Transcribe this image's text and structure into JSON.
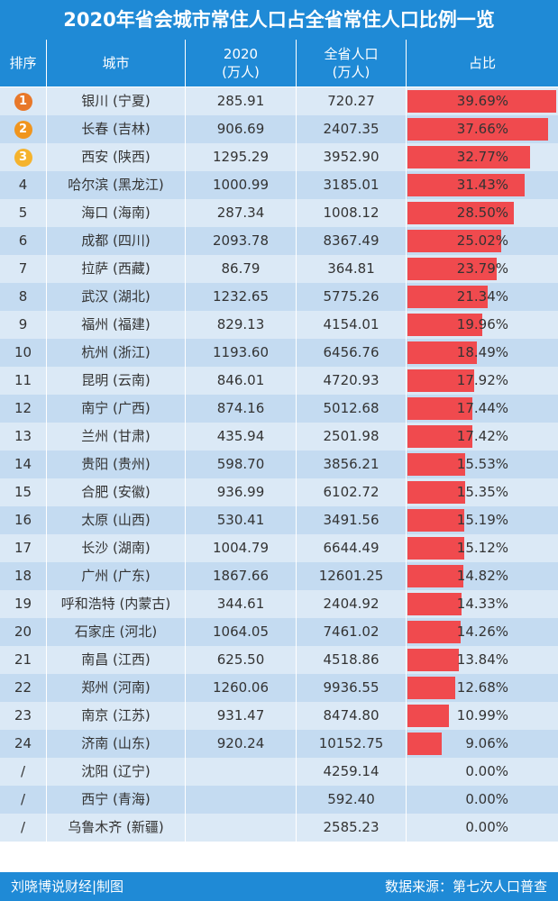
{
  "title": "2020年省会城市常住人口占全省常住人口比例一览",
  "headers": {
    "rank": "排序",
    "city": "城市",
    "pop2020_line1": "2020",
    "pop2020_line2": "(万人)",
    "province_line1": "全省人口",
    "province_line2": "(万人)",
    "share": "占比"
  },
  "colors": {
    "header": "#1f8ad6",
    "bar": "#f04a4e",
    "row_light": "#dbe9f6",
    "row_dark": "#c4dbf1"
  },
  "chart_data": {
    "type": "table",
    "title": "2020年省会城市常住人口占全省常住人口比例一览",
    "columns": [
      "排序",
      "城市",
      "2020 (万人)",
      "全省人口 (万人)",
      "占比"
    ],
    "rows": [
      {
        "rank": "1",
        "city": "银川 (宁夏)",
        "pop": "285.91",
        "province": "720.27",
        "share": "39.69%",
        "share_value": 39.69
      },
      {
        "rank": "2",
        "city": "长春 (吉林)",
        "pop": "906.69",
        "province": "2407.35",
        "share": "37.66%",
        "share_value": 37.66
      },
      {
        "rank": "3",
        "city": "西安 (陕西)",
        "pop": "1295.29",
        "province": "3952.90",
        "share": "32.77%",
        "share_value": 32.77
      },
      {
        "rank": "4",
        "city": "哈尔滨 (黑龙江)",
        "pop": "1000.99",
        "province": "3185.01",
        "share": "31.43%",
        "share_value": 31.43
      },
      {
        "rank": "5",
        "city": "海口 (海南)",
        "pop": "287.34",
        "province": "1008.12",
        "share": "28.50%",
        "share_value": 28.5
      },
      {
        "rank": "6",
        "city": "成都 (四川)",
        "pop": "2093.78",
        "province": "8367.49",
        "share": "25.02%",
        "share_value": 25.02
      },
      {
        "rank": "7",
        "city": "拉萨 (西藏)",
        "pop": "86.79",
        "province": "364.81",
        "share": "23.79%",
        "share_value": 23.79
      },
      {
        "rank": "8",
        "city": "武汉 (湖北)",
        "pop": "1232.65",
        "province": "5775.26",
        "share": "21.34%",
        "share_value": 21.34
      },
      {
        "rank": "9",
        "city": "福州 (福建)",
        "pop": "829.13",
        "province": "4154.01",
        "share": "19.96%",
        "share_value": 19.96
      },
      {
        "rank": "10",
        "city": "杭州 (浙江)",
        "pop": "1193.60",
        "province": "6456.76",
        "share": "18.49%",
        "share_value": 18.49
      },
      {
        "rank": "11",
        "city": "昆明 (云南)",
        "pop": "846.01",
        "province": "4720.93",
        "share": "17.92%",
        "share_value": 17.92
      },
      {
        "rank": "12",
        "city": "南宁 (广西)",
        "pop": "874.16",
        "province": "5012.68",
        "share": "17.44%",
        "share_value": 17.44
      },
      {
        "rank": "13",
        "city": "兰州 (甘肃)",
        "pop": "435.94",
        "province": "2501.98",
        "share": "17.42%",
        "share_value": 17.42
      },
      {
        "rank": "14",
        "city": "贵阳 (贵州)",
        "pop": "598.70",
        "province": "3856.21",
        "share": "15.53%",
        "share_value": 15.53
      },
      {
        "rank": "15",
        "city": "合肥 (安徽)",
        "pop": "936.99",
        "province": "6102.72",
        "share": "15.35%",
        "share_value": 15.35
      },
      {
        "rank": "16",
        "city": "太原 (山西)",
        "pop": "530.41",
        "province": "3491.56",
        "share": "15.19%",
        "share_value": 15.19
      },
      {
        "rank": "17",
        "city": "长沙 (湖南)",
        "pop": "1004.79",
        "province": "6644.49",
        "share": "15.12%",
        "share_value": 15.12
      },
      {
        "rank": "18",
        "city": "广州 (广东)",
        "pop": "1867.66",
        "province": "12601.25",
        "share": "14.82%",
        "share_value": 14.82
      },
      {
        "rank": "19",
        "city": "呼和浩特 (内蒙古)",
        "pop": "344.61",
        "province": "2404.92",
        "share": "14.33%",
        "share_value": 14.33
      },
      {
        "rank": "20",
        "city": "石家庄 (河北)",
        "pop": "1064.05",
        "province": "7461.02",
        "share": "14.26%",
        "share_value": 14.26
      },
      {
        "rank": "21",
        "city": "南昌 (江西)",
        "pop": "625.50",
        "province": "4518.86",
        "share": "13.84%",
        "share_value": 13.84
      },
      {
        "rank": "22",
        "city": "郑州 (河南)",
        "pop": "1260.06",
        "province": "9936.55",
        "share": "12.68%",
        "share_value": 12.68
      },
      {
        "rank": "23",
        "city": "南京 (江苏)",
        "pop": "931.47",
        "province": "8474.80",
        "share": "10.99%",
        "share_value": 10.99
      },
      {
        "rank": "24",
        "city": "济南 (山东)",
        "pop": "920.24",
        "province": "10152.75",
        "share": "9.06%",
        "share_value": 9.06
      },
      {
        "rank": "/",
        "city": "沈阳 (辽宁)",
        "pop": "",
        "province": "4259.14",
        "share": "0.00%",
        "share_value": 0
      },
      {
        "rank": "/",
        "city": "西宁 (青海)",
        "pop": "",
        "province": "592.40",
        "share": "0.00%",
        "share_value": 0
      },
      {
        "rank": "/",
        "city": "乌鲁木齐 (新疆)",
        "pop": "",
        "province": "2585.23",
        "share": "0.00%",
        "share_value": 0
      }
    ],
    "share_range": [
      0,
      40
    ]
  },
  "footer": {
    "left": "刘晓博说财经|制图",
    "right": "数据来源：第七次人口普查"
  }
}
